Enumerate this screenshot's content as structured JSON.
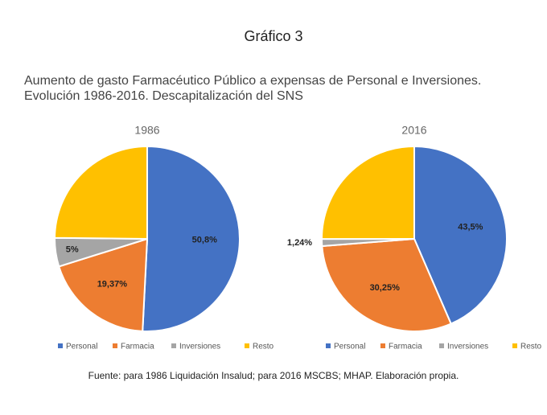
{
  "title": "Gráfico 3",
  "subtitle": [
    "Aumento de gasto Farmacéutico Público a expensas de Personal e Inversiones.",
    "Evolución 1986-2016. Descapitalización del SNS"
  ],
  "source": "Fuente: para 1986 Liquidación Insalud; para 2016 MSCBS; MHAP. Elaboración propia.",
  "chart_data": [
    {
      "type": "pie",
      "title": "1986",
      "categories": [
        "Personal",
        "Farmacia",
        "Inversiones",
        "Resto"
      ],
      "values": [
        50.8,
        19.37,
        5,
        24.83
      ],
      "value_labels": [
        "50,8%",
        "19,37%",
        "5%",
        null
      ],
      "colors": [
        "#4472c4",
        "#ed7d31",
        "#a5a5a5",
        "#ffc000"
      ],
      "legend": "bottom"
    },
    {
      "type": "pie",
      "title": "2016",
      "categories": [
        "Personal",
        "Farmacia",
        "Inversiones",
        "Resto"
      ],
      "values": [
        43.5,
        30.25,
        1.24,
        25.01
      ],
      "value_labels": [
        "43,5%",
        "30,25%",
        "1,24%",
        null
      ],
      "colors": [
        "#4472c4",
        "#ed7d31",
        "#a5a5a5",
        "#ffc000"
      ],
      "legend": "bottom"
    }
  ]
}
